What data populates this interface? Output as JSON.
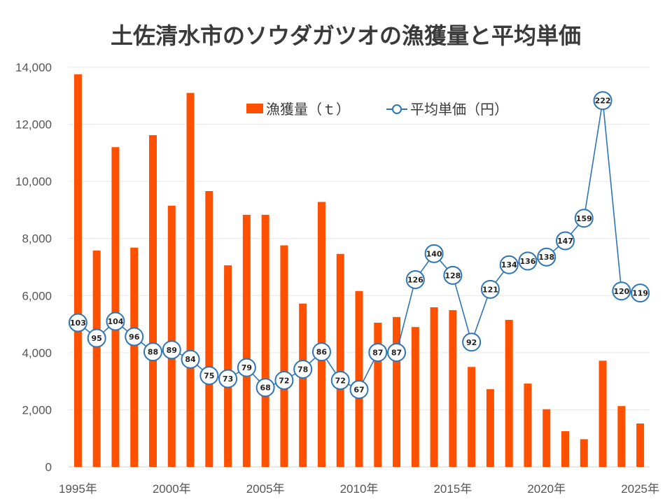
{
  "chart_data": {
    "type": "bar+line",
    "title": "土佐清水市のソウダガツオの漁獲量と平均単価",
    "years": [
      1995,
      1996,
      1997,
      1998,
      1999,
      2000,
      2001,
      2002,
      2003,
      2004,
      2005,
      2006,
      2007,
      2008,
      2009,
      2010,
      2011,
      2012,
      2013,
      2014,
      2015,
      2016,
      2017,
      2018,
      2019,
      2020,
      2021,
      2022,
      2023,
      2024,
      2025
    ],
    "x_tick_labels": [
      "1995年",
      "2000年",
      "2005年",
      "2010年",
      "2015年",
      "2020年",
      "2025年"
    ],
    "y_tick_labels": [
      "0",
      "2,000",
      "4,000",
      "6,000",
      "8,000",
      "10,000",
      "12,000",
      "14,000"
    ],
    "ylim": [
      0,
      14000
    ],
    "grid": true,
    "legend_position": "top-center",
    "series": [
      {
        "name": "漁獲量（ｔ）",
        "kind": "bar",
        "color": "#FF5000",
        "values": [
          13750,
          7580,
          11200,
          7680,
          11620,
          9150,
          13100,
          9660,
          7060,
          8830,
          8830,
          7760,
          5720,
          9280,
          7460,
          6160,
          5050,
          5250,
          4900,
          5590,
          5490,
          3500,
          2720,
          5150,
          2920,
          2020,
          1250,
          970,
          3720,
          2130,
          1520
        ]
      },
      {
        "name": "平均単価（円）",
        "kind": "line",
        "color": "#2E75B6",
        "marker_fill": "#ffffff",
        "values": [
          103,
          95,
          104,
          96,
          88,
          89,
          84,
          75,
          73,
          79,
          68,
          72,
          78,
          86,
          72,
          67,
          87,
          87,
          126,
          140,
          128,
          92,
          121,
          134,
          136,
          138,
          147,
          159,
          222,
          120,
          119
        ],
        "plot_y_values": [
          5050,
          4510,
          5100,
          4560,
          4030,
          4100,
          3770,
          3200,
          3090,
          3480,
          2780,
          3030,
          3420,
          4030,
          3030,
          2710,
          4010,
          4010,
          6560,
          7470,
          6710,
          4370,
          6220,
          7080,
          7210,
          7350,
          7920,
          8710,
          12830,
          6160,
          6090
        ]
      }
    ]
  }
}
